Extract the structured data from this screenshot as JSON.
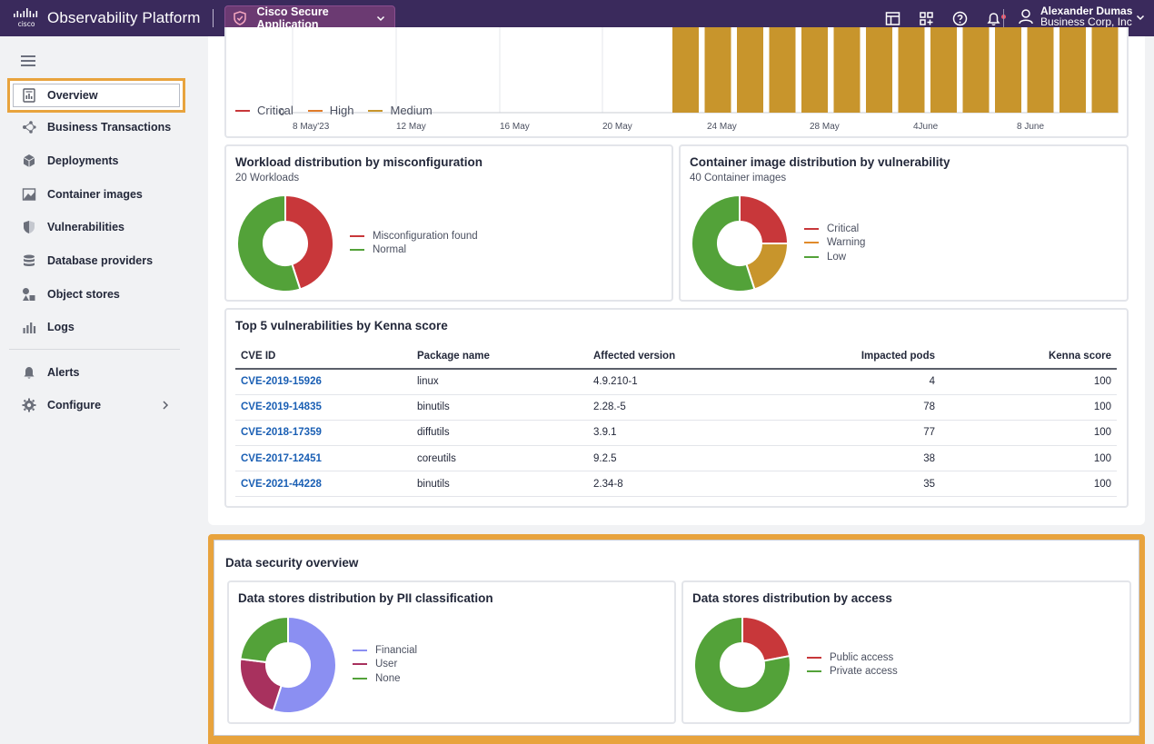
{
  "topbar": {
    "brand": "Observability Platform",
    "app_name": "Cisco Secure Application",
    "user_name": "Alexander Dumas",
    "user_org": "Business Corp, Inc"
  },
  "sidebar": {
    "items": [
      {
        "label": "Overview",
        "icon": "overview-icon",
        "active": true
      },
      {
        "label": "Business Transactions",
        "icon": "business-transactions-icon"
      },
      {
        "label": "Deployments",
        "icon": "deployments-icon"
      },
      {
        "label": "Container images",
        "icon": "container-images-icon"
      },
      {
        "label": "Vulnerabilities",
        "icon": "vulnerabilities-icon"
      },
      {
        "label": "Database providers",
        "icon": "database-icon"
      },
      {
        "label": "Object stores",
        "icon": "object-stores-icon"
      },
      {
        "label": "Logs",
        "icon": "logs-icon"
      },
      {
        "label": "Alerts",
        "icon": "bell-icon"
      },
      {
        "label": "Configure",
        "icon": "gear-icon"
      }
    ]
  },
  "colors": {
    "critical": "#c8373a",
    "high": "#e07b2a",
    "medium": "#c8952c",
    "normal": "#53a239",
    "financial": "#8b8ff2",
    "user": "#a8315e",
    "accent_highlight": "#e8a33d",
    "link": "#1a5fb4"
  },
  "trend_chart": {
    "chart_data": {
      "type": "bar",
      "categories": [
        "8 May'23",
        "12 May",
        "16 May",
        "20 May",
        "24 May",
        "28 May",
        "4June",
        "8 June"
      ],
      "y_tick_visible": "0",
      "legend": [
        "Critical",
        "High",
        "Medium"
      ]
    }
  },
  "workload_card": {
    "title": "Workload distribution by misconfiguration",
    "subtitle": "20 Workloads",
    "chart_data": {
      "type": "pie",
      "labels": [
        "Misconfiguration found",
        "Normal"
      ],
      "values": [
        45,
        55
      ]
    }
  },
  "container_card": {
    "title": "Container image distribution by vulnerability",
    "subtitle": "40 Container images",
    "chart_data": {
      "type": "pie",
      "labels": [
        "Critical",
        "Warning",
        "Low"
      ],
      "values": [
        25,
        20,
        55
      ]
    }
  },
  "top5": {
    "title": "Top 5 vulnerabilities by Kenna score",
    "headers": [
      "CVE ID",
      "Package name",
      "Affected version",
      "Impacted pods",
      "Kenna score"
    ],
    "rows": [
      {
        "cve": "CVE-2019-15926",
        "pkg": "linux",
        "ver": "4.9.210-1",
        "pods": "4",
        "score": "100"
      },
      {
        "cve": "CVE-2019-14835",
        "pkg": "binutils",
        "ver": "2.28.-5",
        "pods": "78",
        "score": "100"
      },
      {
        "cve": "CVE-2018-17359",
        "pkg": "diffutils",
        "ver": "3.9.1",
        "pods": "77",
        "score": "100"
      },
      {
        "cve": "CVE-2017-12451",
        "pkg": "coreutils",
        "ver": "9.2.5",
        "pods": "38",
        "score": "100"
      },
      {
        "cve": "CVE-2021-44228",
        "pkg": "binutils",
        "ver": "2.34-8",
        "pods": "35",
        "score": "100"
      }
    ]
  },
  "data_security": {
    "title": "Data security overview",
    "pii_card": {
      "title": "Data stores distribution by PII classification",
      "chart_data": {
        "type": "pie",
        "labels": [
          "Financial",
          "User",
          "None"
        ],
        "values": [
          55,
          22,
          23
        ]
      }
    },
    "access_card": {
      "title": "Data stores distribution by access",
      "chart_data": {
        "type": "pie",
        "labels": [
          "Public access",
          "Private access"
        ],
        "values": [
          22,
          78
        ]
      }
    }
  }
}
